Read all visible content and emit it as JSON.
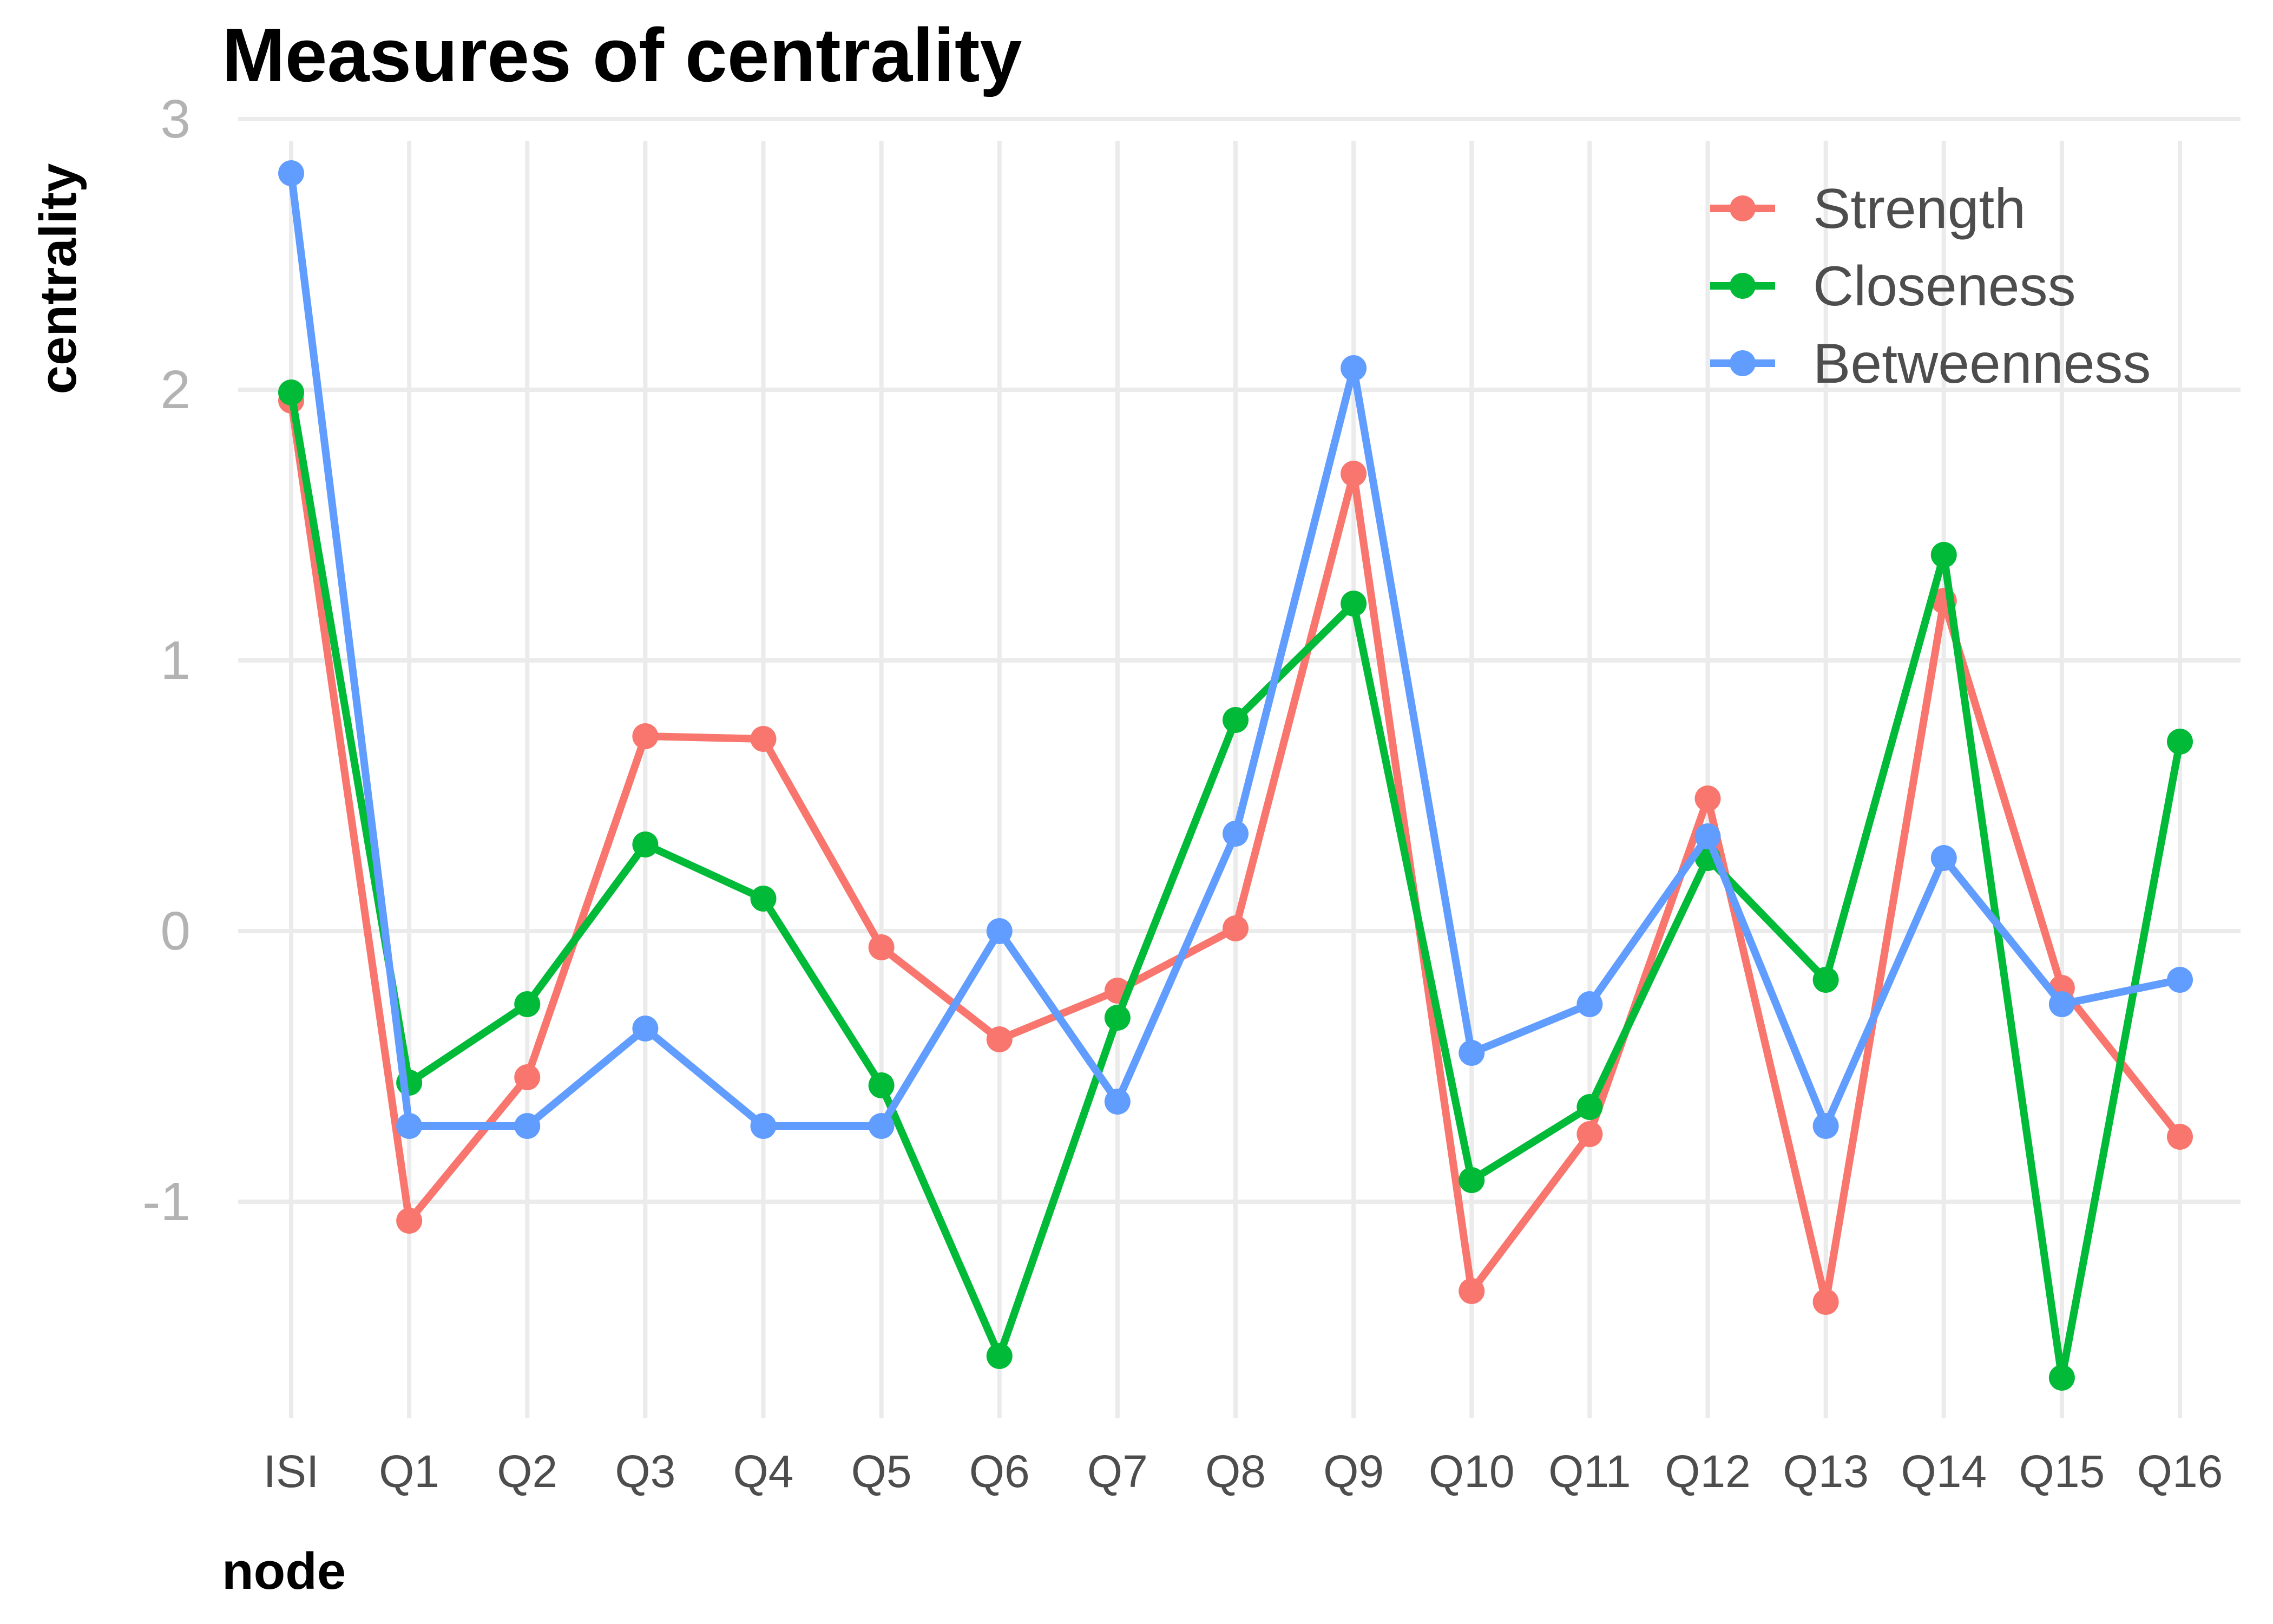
{
  "chart_data": {
    "type": "line",
    "title": "Measures of centrality",
    "xlabel": "node",
    "ylabel": "centrality",
    "categories": [
      "ISI",
      "Q1",
      "Q2",
      "Q3",
      "Q4",
      "Q5",
      "Q6",
      "Q7",
      "Q8",
      "Q9",
      "Q10",
      "Q11",
      "Q12",
      "Q13",
      "Q14",
      "Q15",
      "Q16"
    ],
    "ylim": [
      -1.8,
      3.0
    ],
    "yticks": [
      -1,
      0,
      1,
      2,
      3
    ],
    "ytick_labels": [
      "-1",
      "0",
      "1",
      "2",
      "3"
    ],
    "grid": true,
    "legend": "top-right",
    "series": [
      {
        "name": "Strength",
        "color": "#F8766D",
        "values": [
          1.96,
          -1.07,
          -0.54,
          0.72,
          0.71,
          -0.06,
          -0.4,
          -0.22,
          0.01,
          1.69,
          -1.33,
          -0.75,
          0.49,
          -1.37,
          1.22,
          -0.21,
          -0.76
        ]
      },
      {
        "name": "Closeness",
        "color": "#00BA38",
        "values": [
          1.99,
          -0.56,
          -0.27,
          0.32,
          0.12,
          -0.57,
          -1.57,
          -0.32,
          0.78,
          1.21,
          -0.92,
          -0.65,
          0.27,
          -0.18,
          1.39,
          -1.65,
          0.7
        ]
      },
      {
        "name": "Betweenness",
        "color": "#619CFF",
        "values": [
          2.8,
          -0.72,
          -0.72,
          -0.36,
          -0.72,
          -0.72,
          0.0,
          -0.63,
          0.36,
          2.08,
          -0.45,
          -0.27,
          0.35,
          -0.72,
          0.27,
          -0.27,
          -0.18
        ]
      }
    ]
  }
}
